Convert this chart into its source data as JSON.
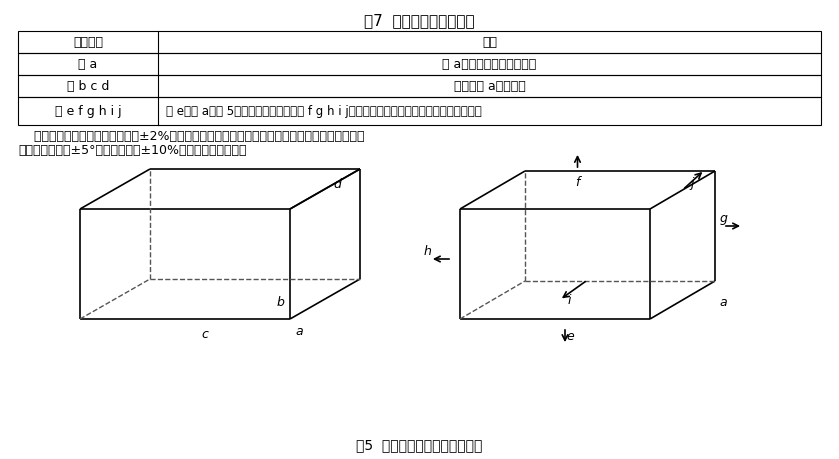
{
  "title": "表7  包装箱跌落顺序示例",
  "fig_caption": "图5  运输包装箱跌落顺序示意图",
  "table_headers": [
    "跌落顺序",
    "描述"
  ],
  "table_rows": [
    [
      "角 a",
      "角 a跌落被认为是最薄弱的"
    ],
    [
      "边 b c d",
      "连接到角 a的三条边"
    ],
    [
      "面 e f g h i j",
      "面 e是角 a在图 5所示位置时的底面，面 f g h i j则依次是上面、右面、左面、前面、后面。"
    ]
  ],
  "body_text1": "    高度的公差应在规定跌落高度的±2%以内。包装箱边或角跌落时，跌落位置所在的平面和水平面",
  "body_text2": "的夹角不得超过±5°或规定角度的±10%（以较大者为准）。",
  "bg_color": "#ffffff",
  "line_color": "#000000",
  "dashed_color": "#555555",
  "text_color": "#000000"
}
